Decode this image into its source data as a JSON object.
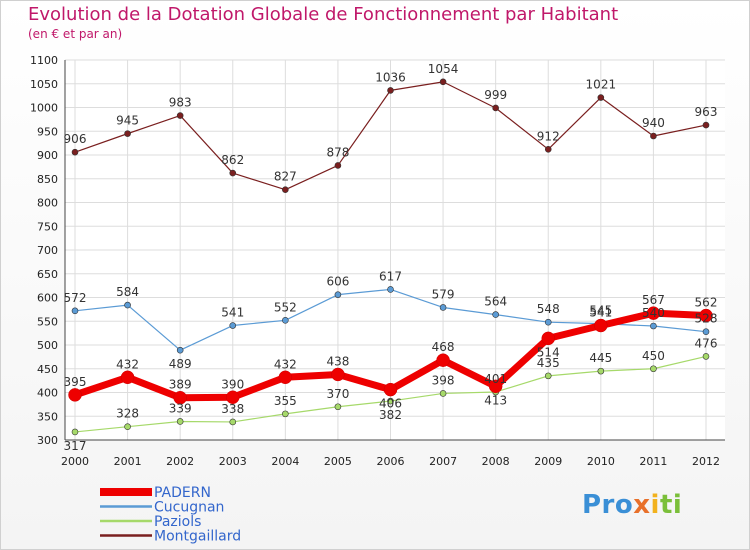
{
  "title": "Evolution de la Dotation Globale de Fonctionnement par Habitant",
  "subtitle": "(en € et par an)",
  "logo": "Proxiti",
  "chart_data": {
    "type": "line",
    "title": "Evolution de la Dotation Globale de Fonctionnement par Habitant",
    "subtitle": "(en € et par an)",
    "categories": [
      "2000",
      "2001",
      "2002",
      "2003",
      "2004",
      "2005",
      "2006",
      "2007",
      "2008",
      "2009",
      "2010",
      "2011",
      "2012"
    ],
    "ylim": [
      300,
      1100
    ],
    "yticks": [
      300,
      350,
      400,
      450,
      500,
      550,
      600,
      650,
      700,
      750,
      800,
      850,
      900,
      950,
      1000,
      1050,
      1100
    ],
    "grid": true,
    "legend_position": "bottom-left",
    "series": [
      {
        "name": "PADERN",
        "color": "#ee0000",
        "values": [
          395,
          432,
          389,
          390,
          432,
          438,
          406,
          468,
          413,
          514,
          541,
          567,
          562
        ]
      },
      {
        "name": "Cucugnan",
        "color": "#5b9bd5",
        "values": [
          572,
          584,
          489,
          541,
          552,
          606,
          617,
          579,
          564,
          548,
          545,
          540,
          528
        ]
      },
      {
        "name": "Paziols",
        "color": "#a6d96a",
        "values": [
          317,
          328,
          339,
          338,
          355,
          370,
          382,
          398,
          401,
          435,
          445,
          450,
          476
        ]
      },
      {
        "name": "Montgaillard",
        "color": "#7a1f1f",
        "values": [
          906,
          945,
          983,
          862,
          827,
          878,
          1036,
          1054,
          999,
          912,
          1021,
          940,
          963
        ]
      }
    ]
  }
}
